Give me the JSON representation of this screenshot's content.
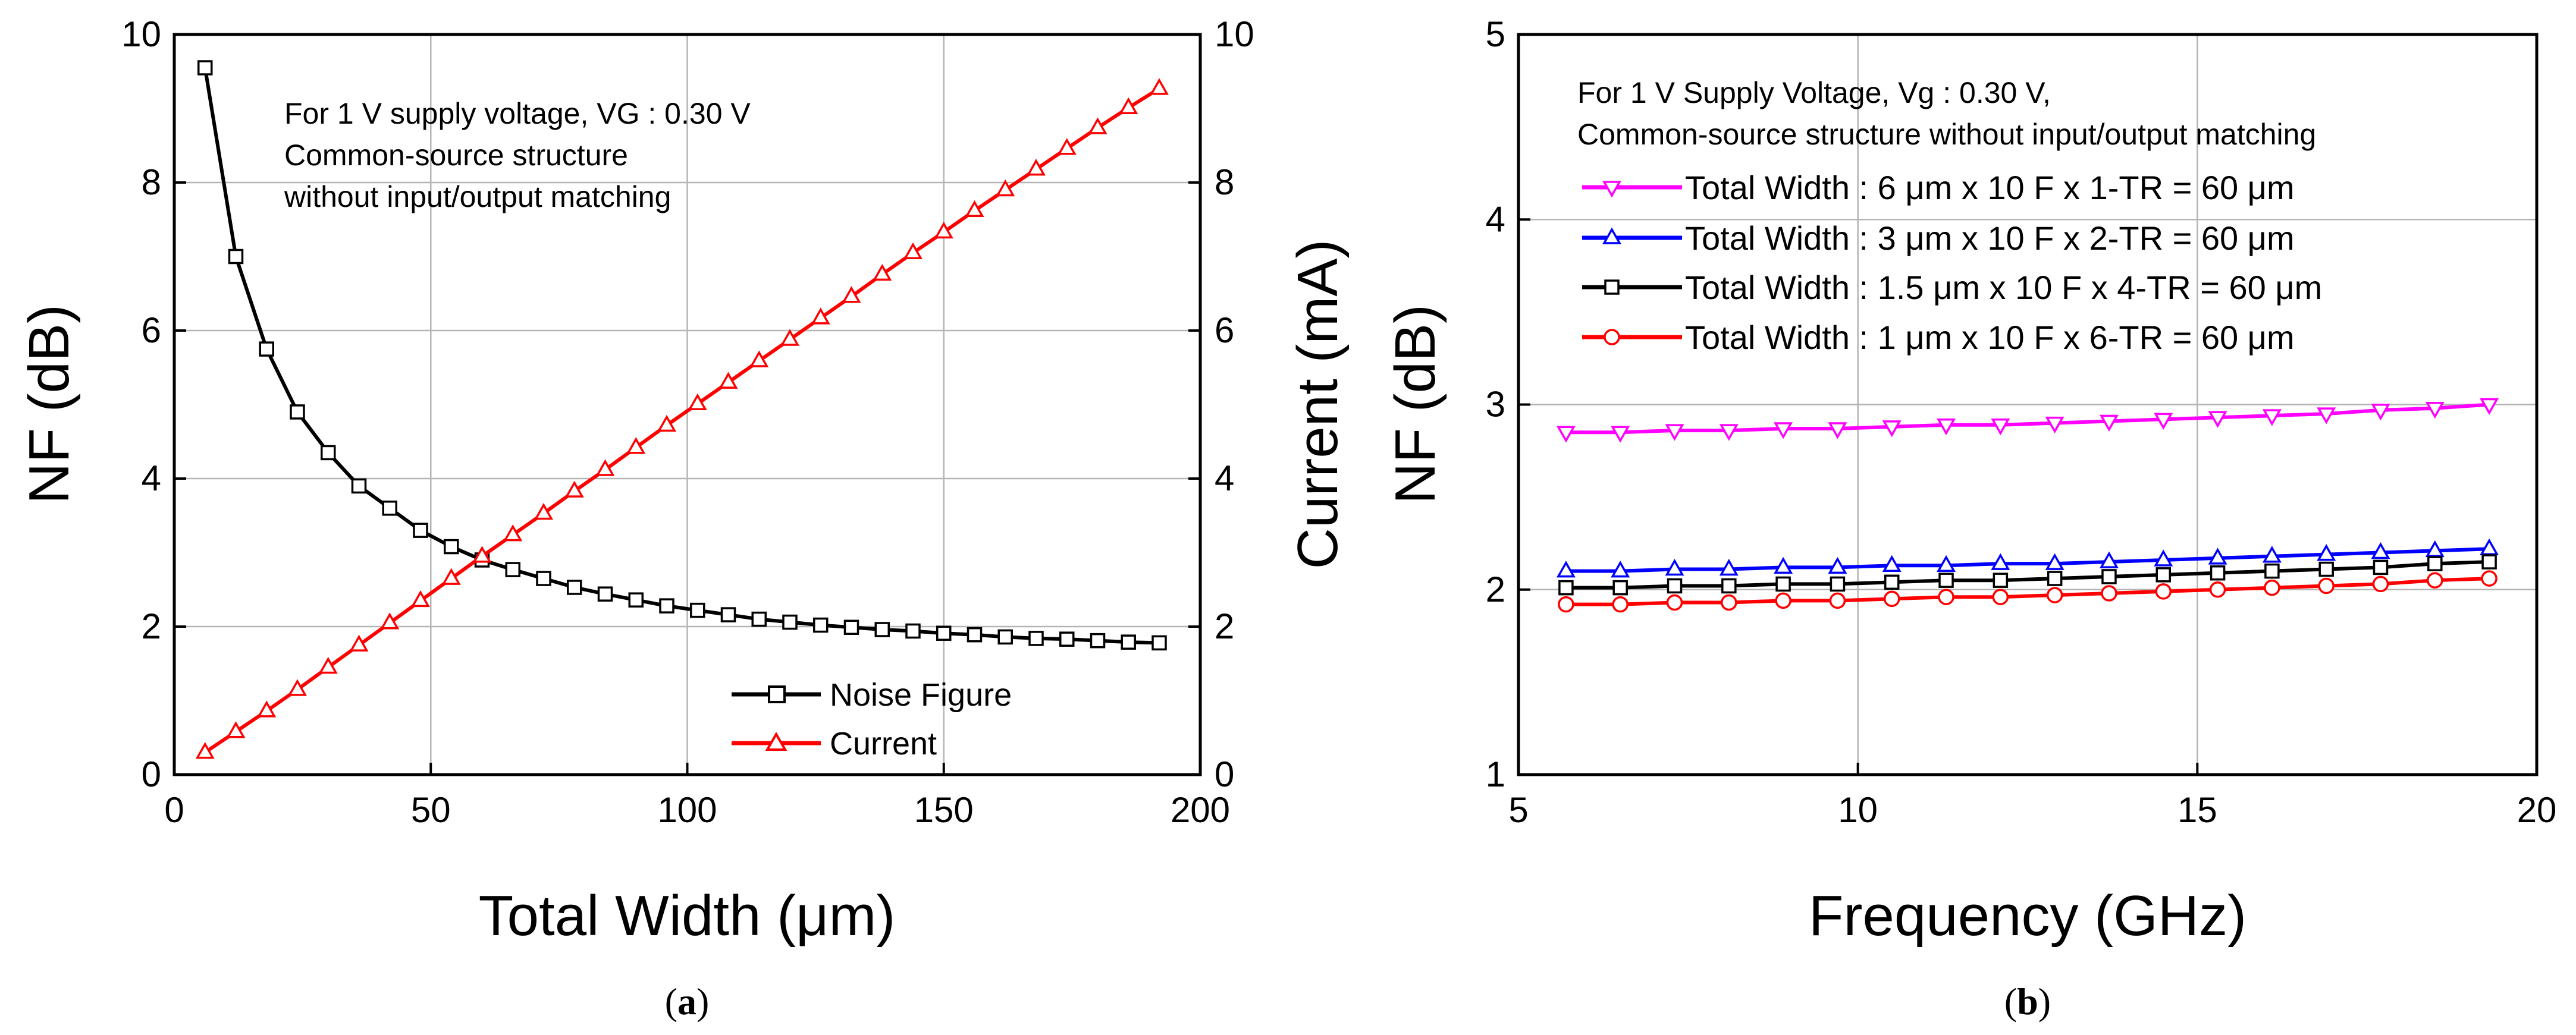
{
  "chart_data": [
    {
      "type": "line",
      "panel_label": {
        "open": "(",
        "letter": "a",
        "close": ")"
      },
      "xlabel": "Total Width (μm)",
      "ylabel": "NF (dB)",
      "ylabel_right": "Current (mA)",
      "xlim": [
        0,
        200
      ],
      "ylim": [
        0,
        10
      ],
      "ylim_right": [
        0,
        10
      ],
      "xticks": [
        "0",
        "50",
        "100",
        "150",
        "200"
      ],
      "yticks": [
        "0",
        "2",
        "4",
        "6",
        "8",
        "10"
      ],
      "yticks_right": [
        "0",
        "2",
        "4",
        "6",
        "8",
        "10"
      ],
      "grid": true,
      "annotation": [
        "For 1 V supply voltage, VG : 0.30 V",
        "Common-source structure",
        "without input/output matching"
      ],
      "legend_position": "bottom-right",
      "x": [
        6,
        12,
        18,
        24,
        30,
        36,
        42,
        48,
        54,
        60,
        66,
        72,
        78,
        84,
        90,
        96,
        102,
        108,
        114,
        120,
        126,
        132,
        138,
        144,
        150,
        156,
        162,
        168,
        174,
        180,
        186,
        192
      ],
      "series": [
        {
          "name": "Noise Figure",
          "axis": "left",
          "color": "#000000",
          "marker": "square",
          "values": [
            9.55,
            7.0,
            5.75,
            4.9,
            4.35,
            3.9,
            3.6,
            3.3,
            3.08,
            2.9,
            2.77,
            2.65,
            2.53,
            2.44,
            2.36,
            2.28,
            2.22,
            2.16,
            2.1,
            2.06,
            2.02,
            1.99,
            1.96,
            1.94,
            1.91,
            1.89,
            1.86,
            1.84,
            1.83,
            1.81,
            1.79,
            1.78
          ]
        },
        {
          "name": "Current",
          "axis": "right",
          "color": "#ff0000",
          "marker": "triangle-up",
          "values": [
            0.3,
            0.58,
            0.86,
            1.15,
            1.45,
            1.75,
            2.05,
            2.35,
            2.65,
            2.95,
            3.24,
            3.53,
            3.83,
            4.12,
            4.42,
            4.72,
            5.01,
            5.3,
            5.59,
            5.88,
            6.17,
            6.46,
            6.76,
            7.05,
            7.33,
            7.62,
            7.9,
            8.18,
            8.46,
            8.74,
            9.01,
            9.27
          ]
        }
      ]
    },
    {
      "type": "line",
      "panel_label": {
        "open": "(",
        "letter": "b",
        "close": ")"
      },
      "xlabel": "Frequency (GHz)",
      "ylabel": "NF (dB)",
      "xlim": [
        5,
        20
      ],
      "ylim": [
        1,
        5
      ],
      "xticks": [
        "5",
        "10",
        "15",
        "20"
      ],
      "yticks": [
        "1",
        "2",
        "3",
        "4",
        "5"
      ],
      "grid": true,
      "annotation": [
        "For 1 V Supply Voltage, Vg : 0.30 V,",
        "Common-source structure without input/output matching"
      ],
      "legend_position": "top-left",
      "x": [
        5.7,
        6.5,
        7.3,
        8.1,
        8.9,
        9.7,
        10.5,
        11.3,
        12.1,
        12.9,
        13.7,
        14.5,
        15.3,
        16.1,
        16.9,
        17.7,
        18.5,
        19.3
      ],
      "series": [
        {
          "name": "Total Width : 6 μm x 10 F x 1-TR = 60 μm",
          "color": "#ff00ff",
          "marker": "triangle-down",
          "values": [
            2.85,
            2.85,
            2.86,
            2.86,
            2.87,
            2.87,
            2.88,
            2.89,
            2.89,
            2.9,
            2.91,
            2.92,
            2.93,
            2.94,
            2.95,
            2.97,
            2.98,
            3.0
          ]
        },
        {
          "name": "Total Width : 3 μm x 10 F x 2-TR = 60 μm",
          "color": "#0000ff",
          "marker": "triangle-up",
          "values": [
            2.1,
            2.1,
            2.11,
            2.11,
            2.12,
            2.12,
            2.13,
            2.13,
            2.14,
            2.14,
            2.15,
            2.16,
            2.17,
            2.18,
            2.19,
            2.2,
            2.21,
            2.22
          ]
        },
        {
          "name": "Total Width : 1.5 μm x 10 F x 4-TR = 60 μm",
          "color": "#000000",
          "marker": "square",
          "values": [
            2.01,
            2.01,
            2.02,
            2.02,
            2.03,
            2.03,
            2.04,
            2.05,
            2.05,
            2.06,
            2.07,
            2.08,
            2.09,
            2.1,
            2.11,
            2.12,
            2.14,
            2.15
          ]
        },
        {
          "name": "Total Width : 1 μm x 10 F x 6-TR = 60 μm",
          "color": "#ff0000",
          "marker": "circle",
          "values": [
            1.92,
            1.92,
            1.93,
            1.93,
            1.94,
            1.94,
            1.95,
            1.96,
            1.96,
            1.97,
            1.98,
            1.99,
            2.0,
            2.01,
            2.02,
            2.03,
            2.05,
            2.06
          ]
        }
      ]
    }
  ]
}
